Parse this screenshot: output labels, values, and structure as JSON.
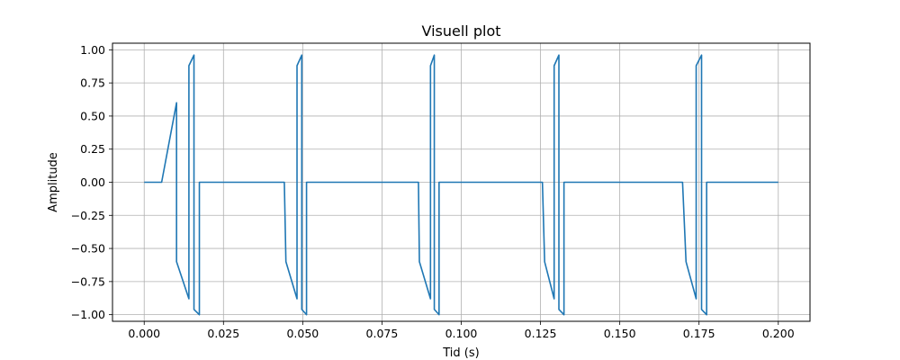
{
  "chart_data": {
    "type": "line",
    "title": "Visuell plot",
    "xlabel": "Tid (s)",
    "ylabel": "Amplitude",
    "xlim": [
      -0.01,
      0.21
    ],
    "ylim": [
      -1.05,
      1.05
    ],
    "grid": true,
    "x_ticks": [
      0.0,
      0.025,
      0.05,
      0.075,
      0.1,
      0.125,
      0.15,
      0.175,
      0.2
    ],
    "x_tick_labels": [
      "0.000",
      "0.025",
      "0.050",
      "0.075",
      "0.100",
      "0.125",
      "0.150",
      "0.175",
      "0.200"
    ],
    "y_ticks": [
      -1.0,
      -0.75,
      -0.5,
      -0.25,
      0.0,
      0.25,
      0.5,
      0.75,
      1.0
    ],
    "y_tick_labels": [
      "−1.00",
      "−0.75",
      "−0.50",
      "−0.25",
      "0.00",
      "0.25",
      "0.50",
      "0.75",
      "1.00"
    ],
    "series": [
      {
        "color": "#1f77b4",
        "x": [
          0.0,
          0.0055,
          0.0102,
          0.0102,
          0.0141,
          0.0141,
          0.0157,
          0.0157,
          0.0174,
          0.0174,
          0.0442,
          0.0447,
          0.0482,
          0.0482,
          0.0497,
          0.0497,
          0.0512,
          0.0512,
          0.0865,
          0.0868,
          0.0903,
          0.0903,
          0.0915,
          0.0915,
          0.093,
          0.093,
          0.1256,
          0.1263,
          0.1293,
          0.1293,
          0.1308,
          0.1308,
          0.1324,
          0.1324,
          0.1698,
          0.1709,
          0.1741,
          0.1741,
          0.1758,
          0.1758,
          0.1774,
          0.1774,
          0.2
        ],
        "y": [
          0.0,
          0.0,
          0.6,
          -0.6,
          -0.88,
          0.88,
          0.96,
          -0.96,
          -1.0,
          0.0,
          0.0,
          -0.6,
          -0.88,
          0.88,
          0.96,
          -0.96,
          -1.0,
          0.0,
          0.0,
          -0.6,
          -0.88,
          0.88,
          0.96,
          -0.96,
          -1.0,
          0.0,
          0.0,
          -0.6,
          -0.88,
          0.88,
          0.96,
          -0.96,
          -1.0,
          0.0,
          0.0,
          -0.6,
          -0.88,
          0.88,
          0.96,
          -0.96,
          -1.0,
          0.0,
          0.0
        ]
      }
    ]
  }
}
